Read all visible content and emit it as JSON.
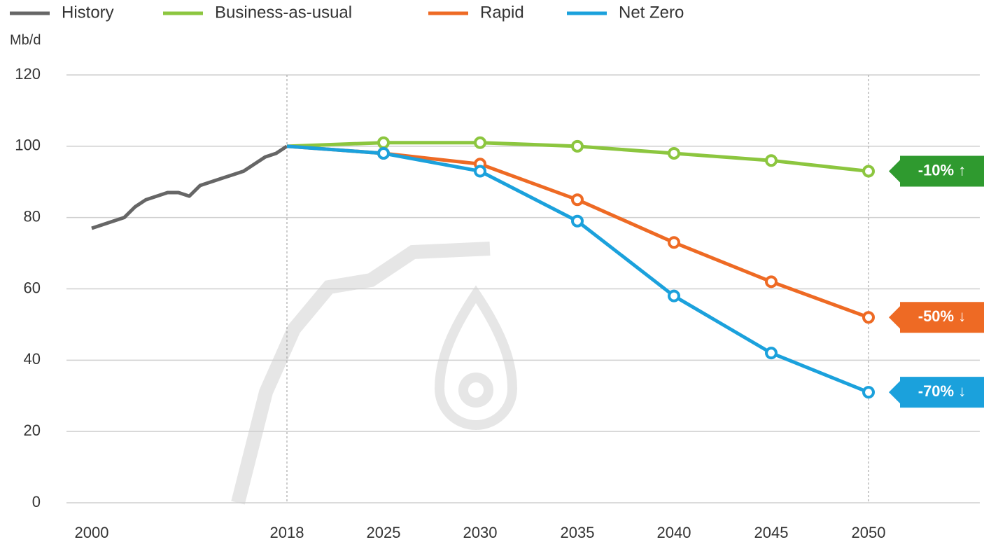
{
  "chart_data": {
    "type": "line",
    "y_label": "Mb/d",
    "xlim": [
      2000,
      2050
    ],
    "xticks": [
      2000,
      2018,
      2025,
      2030,
      2035,
      2040,
      2045,
      2050
    ],
    "ylim": [
      0,
      120
    ],
    "yticks": [
      0,
      20,
      40,
      60,
      80,
      100,
      120
    ],
    "grid": true,
    "vlines": [
      2018,
      2050
    ],
    "series": [
      {
        "name": "History",
        "color": "#666666",
        "markers": false,
        "x": [
          2000,
          2001,
          2002,
          2003,
          2004,
          2005,
          2006,
          2007,
          2008,
          2009,
          2010,
          2011,
          2012,
          2013,
          2014,
          2015,
          2016,
          2017,
          2018
        ],
        "values": [
          77,
          78,
          79,
          80,
          83,
          85,
          86,
          87,
          87,
          86,
          89,
          90,
          91,
          92,
          93,
          95,
          97,
          98,
          100
        ]
      },
      {
        "name": "Business-as-usual",
        "color": "#8cc63f",
        "markers": true,
        "label_color": "#2f9a2f",
        "end_label": "-10% ↑",
        "x": [
          2018,
          2025,
          2030,
          2035,
          2040,
          2045,
          2050
        ],
        "values": [
          100,
          101,
          101,
          100,
          98,
          96,
          93
        ]
      },
      {
        "name": "Rapid",
        "color": "#ee6a24",
        "markers": true,
        "label_color": "#ee6a24",
        "end_label": "-50% ↓",
        "x": [
          2018,
          2025,
          2030,
          2035,
          2040,
          2045,
          2050
        ],
        "values": [
          100,
          98,
          95,
          85,
          73,
          62,
          52
        ]
      },
      {
        "name": "Net Zero",
        "color": "#1ba1dc",
        "markers": true,
        "label_color": "#1ba1dc",
        "end_label": "-70% ↓",
        "x": [
          2018,
          2025,
          2030,
          2035,
          2040,
          2045,
          2050
        ],
        "values": [
          100,
          98,
          93,
          79,
          58,
          42,
          31
        ]
      }
    ]
  }
}
